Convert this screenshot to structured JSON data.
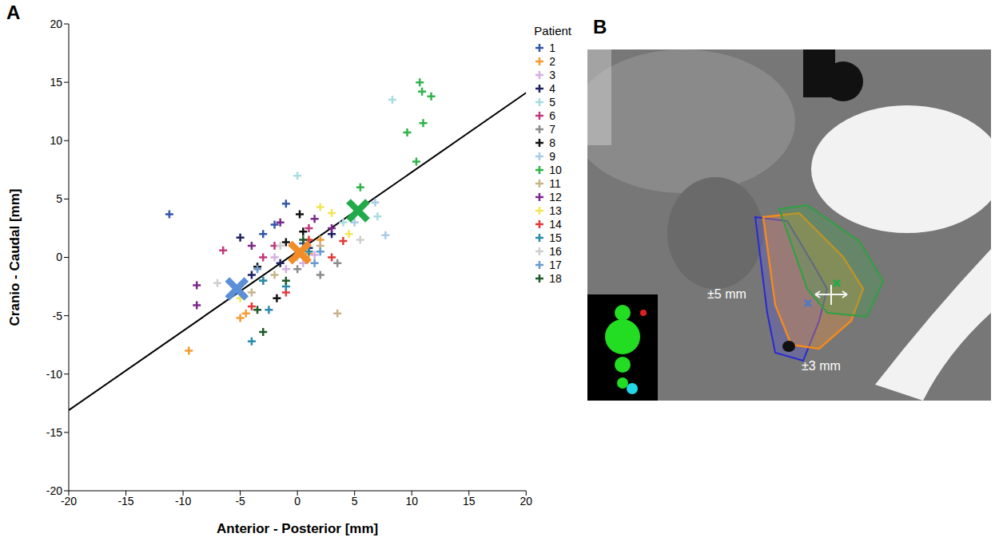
{
  "chart_data": [
    {
      "panel": "A",
      "type": "scatter",
      "x_label": "Anterior - Posterior [mm]",
      "y_label": "Cranio - Caudal [mm]",
      "legend_title": "Patient",
      "legend": "right",
      "grid": false,
      "marker": "plus",
      "xlim": [
        -20,
        20
      ],
      "ylim": [
        -20,
        20
      ],
      "xticks": [
        -20,
        -15,
        -10,
        -5,
        0,
        5,
        10,
        15,
        20
      ],
      "yticks": [
        -20,
        -15,
        -10,
        -5,
        0,
        5,
        10,
        15,
        20
      ],
      "series": [
        {
          "name": "1",
          "color": "#3355aa",
          "x": [
            -11.2,
            -1,
            -2,
            0.5,
            -3
          ],
          "y": [
            3.7,
            4.6,
            2.8,
            1.2,
            2
          ]
        },
        {
          "name": "2",
          "color": "#f39c34",
          "x": [
            -9.5,
            -5,
            -4.5,
            1,
            2
          ],
          "y": [
            -8,
            -5.2,
            -4.8,
            0.3,
            1.5
          ]
        },
        {
          "name": "3",
          "color": "#d4b0e0",
          "x": [
            -1,
            0.5,
            1.5,
            -2
          ],
          "y": [
            -1,
            -0.5,
            0.2,
            0
          ]
        },
        {
          "name": "4",
          "color": "#1f2060",
          "x": [
            -5,
            -4,
            -1.5,
            1,
            3
          ],
          "y": [
            1.7,
            -1.5,
            -0.5,
            0.8,
            2
          ]
        },
        {
          "name": "5",
          "color": "#a8dde0",
          "x": [
            8.3,
            0,
            4,
            7
          ],
          "y": [
            13.5,
            7,
            3,
            3.5
          ]
        },
        {
          "name": "6",
          "color": "#c0397a",
          "x": [
            -6.5,
            -2,
            1,
            -3
          ],
          "y": [
            0.6,
            1,
            2.5,
            0
          ]
        },
        {
          "name": "7",
          "color": "#8c8c8c",
          "x": [
            -3,
            2,
            3.5,
            0
          ],
          "y": [
            -2,
            -1.5,
            -0.5,
            -1
          ]
        },
        {
          "name": "8",
          "color": "#111111",
          "x": [
            0.2,
            -3.5,
            -1.8,
            0.5,
            -1
          ],
          "y": [
            3.7,
            -0.8,
            -3.5,
            2.2,
            1.3
          ]
        },
        {
          "name": "9",
          "color": "#a9cbe8",
          "x": [
            7.7,
            6.8,
            5,
            2
          ],
          "y": [
            1.9,
            4.7,
            3,
            0.5
          ]
        },
        {
          "name": "10",
          "color": "#2fb34a",
          "x": [
            10.7,
            10.9,
            11.7,
            11,
            9.6,
            10.4,
            5.5
          ],
          "y": [
            15,
            14.2,
            13.8,
            11.5,
            10.7,
            8.2,
            6
          ]
        },
        {
          "name": "11",
          "color": "#c8b48a",
          "x": [
            3.5,
            -4,
            2,
            -2
          ],
          "y": [
            -4.8,
            -3,
            1,
            -1.5
          ]
        },
        {
          "name": "12",
          "color": "#7a2a8a",
          "x": [
            -8.8,
            -8.8,
            -4,
            1.5,
            3,
            -1.5
          ],
          "y": [
            -2.4,
            -4.1,
            1,
            3.3,
            2.5,
            3
          ]
        },
        {
          "name": "13",
          "color": "#f2e65a",
          "x": [
            -5,
            2,
            4.5,
            3
          ],
          "y": [
            -3.5,
            4.3,
            2,
            3.8
          ]
        },
        {
          "name": "14",
          "color": "#e23b3b",
          "x": [
            -4,
            -1,
            1,
            4,
            3
          ],
          "y": [
            -4.2,
            -3,
            1.5,
            1.4,
            0
          ]
        },
        {
          "name": "15",
          "color": "#2a8aaa",
          "x": [
            -4,
            -2.5,
            -1,
            -3,
            1
          ],
          "y": [
            -7.2,
            -4.5,
            -2.5,
            -2,
            0.5
          ]
        },
        {
          "name": "16",
          "color": "#cfcfcf",
          "x": [
            -7,
            5.5,
            -1.5,
            0
          ],
          "y": [
            -2.2,
            1.5,
            1,
            0
          ]
        },
        {
          "name": "17",
          "color": "#6a9ad0",
          "x": [
            2,
            -3.5,
            1.5
          ],
          "y": [
            0.5,
            -1,
            -0.5
          ]
        },
        {
          "name": "18",
          "color": "#1f5a2a",
          "x": [
            -3,
            -1,
            -3.5,
            0.5
          ],
          "y": [
            -6.4,
            -2,
            -4.5,
            1.5
          ]
        }
      ],
      "fit": {
        "x": [
          -20,
          20
        ],
        "y": [
          -13.1,
          14.1
        ],
        "color": "#000000"
      },
      "highlights": {
        "marker": "x",
        "points": [
          {
            "x": -5.3,
            "y": -2.7,
            "color": "#5b8fd6"
          },
          {
            "x": 0.2,
            "y": 0.4,
            "color": "#f28c28"
          },
          {
            "x": 5.3,
            "y": 4.0,
            "color": "#22aa4a"
          }
        ]
      }
    },
    {
      "panel": "B",
      "type": "image",
      "annotations": [
        "±5 mm",
        "±3 mm"
      ]
    }
  ]
}
